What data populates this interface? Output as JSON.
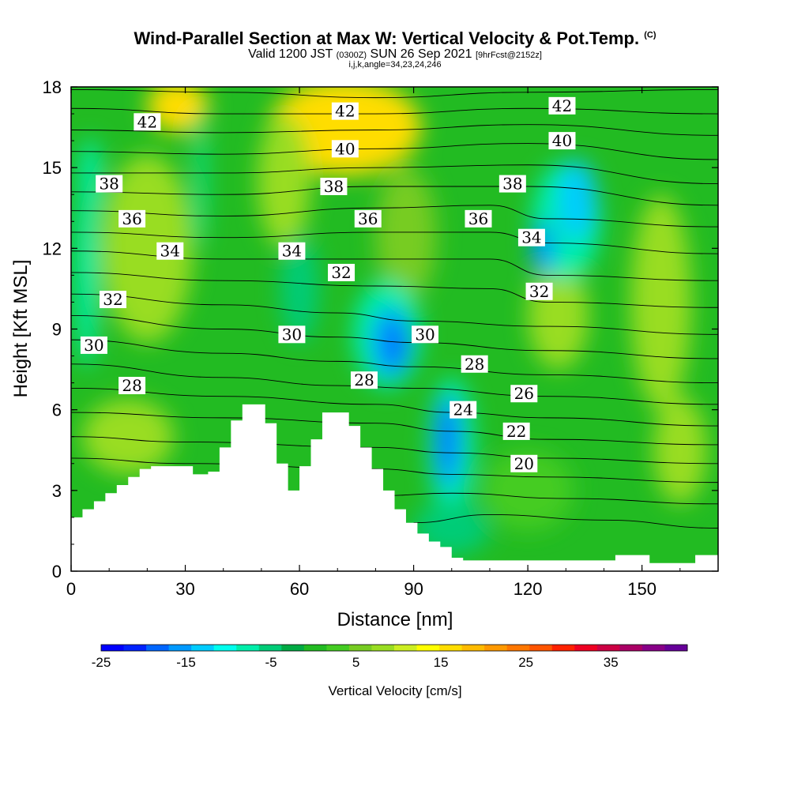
{
  "header": {
    "title": "Wind-Parallel Section at Max W: Vertical Velocity & Pot.Temp.",
    "title_mark": "(C)",
    "valid_prefix": "Valid 1200 JST",
    "valid_utc": "(0300Z)",
    "valid_date": "SUN 26 Sep 2021",
    "forecast_info": "[9hrFcst@2152z]",
    "grid_info": "i,j,k,angle=34,23,24,246"
  },
  "chart_data": {
    "type": "heatmap",
    "xlabel": "Distance [nm]",
    "ylabel": "Height [Kft MSL]",
    "xlim": [
      0,
      170
    ],
    "ylim": [
      0,
      18
    ],
    "xticks": [
      "0",
      "30",
      "60",
      "90",
      "120",
      "150"
    ],
    "yticks": [
      "0",
      "3",
      "6",
      "9",
      "12",
      "15",
      "18"
    ],
    "colorbar": {
      "title": "Vertical Velocity [cm/s]",
      "tick_labels": [
        "-25",
        "-15",
        "-5",
        "5",
        "15",
        "25",
        "35"
      ],
      "range": [
        -25,
        44
      ],
      "colors": [
        "#0000ff",
        "#0022ff",
        "#0066ff",
        "#0099ff",
        "#00ccff",
        "#00ffee",
        "#00eeaa",
        "#00cc77",
        "#00aa44",
        "#22bb22",
        "#44cc22",
        "#77cc22",
        "#99dd22",
        "#ccee22",
        "#ffff00",
        "#ffdd00",
        "#ffbb00",
        "#ff9900",
        "#ff7700",
        "#ff5500",
        "#ff2200",
        "#ee0022",
        "#cc0044",
        "#aa0066",
        "#880088",
        "#660099"
      ]
    },
    "terrain_kft": [
      [
        0,
        2.0
      ],
      [
        3,
        2.3
      ],
      [
        6,
        2.6
      ],
      [
        9,
        2.9
      ],
      [
        12,
        3.2
      ],
      [
        15,
        3.5
      ],
      [
        18,
        3.8
      ],
      [
        21,
        3.9
      ],
      [
        28,
        3.9
      ],
      [
        32,
        3.6
      ],
      [
        36,
        3.7
      ],
      [
        39,
        4.6
      ],
      [
        42,
        5.6
      ],
      [
        45,
        6.2
      ],
      [
        48,
        6.2
      ],
      [
        51,
        5.5
      ],
      [
        54,
        4.0
      ],
      [
        57,
        3.0
      ],
      [
        60,
        3.9
      ],
      [
        63,
        4.9
      ],
      [
        66,
        5.9
      ],
      [
        70,
        5.9
      ],
      [
        73,
        5.4
      ],
      [
        76,
        4.6
      ],
      [
        79,
        3.8
      ],
      [
        82,
        3.0
      ],
      [
        85,
        2.3
      ],
      [
        88,
        1.8
      ],
      [
        91,
        1.4
      ],
      [
        94,
        1.1
      ],
      [
        97,
        0.9
      ],
      [
        100,
        0.5
      ],
      [
        103,
        0.4
      ],
      [
        140,
        0.4
      ],
      [
        143,
        0.6
      ],
      [
        148,
        0.6
      ],
      [
        152,
        0.3
      ],
      [
        164,
        0.6
      ],
      [
        170,
        0.6
      ]
    ],
    "pot_temp_labels": [
      {
        "value": "42",
        "x": 20,
        "y": 16.7
      },
      {
        "value": "42",
        "x": 72,
        "y": 17.1
      },
      {
        "value": "42",
        "x": 129,
        "y": 17.3
      },
      {
        "value": "40",
        "x": 72,
        "y": 15.7
      },
      {
        "value": "40",
        "x": 129,
        "y": 16.0
      },
      {
        "value": "38",
        "x": 10,
        "y": 14.4
      },
      {
        "value": "38",
        "x": 69,
        "y": 14.3
      },
      {
        "value": "38",
        "x": 116,
        "y": 14.4
      },
      {
        "value": "36",
        "x": 16,
        "y": 13.1
      },
      {
        "value": "36",
        "x": 78,
        "y": 13.1
      },
      {
        "value": "36",
        "x": 107,
        "y": 13.1
      },
      {
        "value": "34",
        "x": 26,
        "y": 11.9
      },
      {
        "value": "34",
        "x": 58,
        "y": 11.9
      },
      {
        "value": "34",
        "x": 121,
        "y": 12.4
      },
      {
        "value": "32",
        "x": 11,
        "y": 10.1
      },
      {
        "value": "32",
        "x": 71,
        "y": 11.1
      },
      {
        "value": "32",
        "x": 123,
        "y": 10.4
      },
      {
        "value": "30",
        "x": 6,
        "y": 8.4
      },
      {
        "value": "30",
        "x": 58,
        "y": 8.8
      },
      {
        "value": "30",
        "x": 93,
        "y": 8.8
      },
      {
        "value": "28",
        "x": 16,
        "y": 6.9
      },
      {
        "value": "28",
        "x": 77,
        "y": 7.1
      },
      {
        "value": "28",
        "x": 106,
        "y": 7.7
      },
      {
        "value": "26",
        "x": 119,
        "y": 6.6
      },
      {
        "value": "24",
        "x": 103,
        "y": 6.0
      },
      {
        "value": "22",
        "x": 117,
        "y": 5.2
      },
      {
        "value": "20",
        "x": 119,
        "y": 4.0
      }
    ],
    "pot_temp_lines": [
      [
        [
          0,
          17.9
        ],
        [
          40,
          17.8
        ],
        [
          80,
          17.6
        ],
        [
          120,
          17.8
        ],
        [
          170,
          17.9
        ]
      ],
      [
        [
          0,
          17.2
        ],
        [
          40,
          17.0
        ],
        [
          80,
          17.0
        ],
        [
          120,
          17.2
        ],
        [
          170,
          17.0
        ]
      ],
      [
        [
          0,
          16.4
        ],
        [
          40,
          16.3
        ],
        [
          80,
          16.4
        ],
        [
          120,
          16.6
        ],
        [
          170,
          16.2
        ]
      ],
      [
        [
          0,
          15.6
        ],
        [
          40,
          15.5
        ],
        [
          80,
          15.7
        ],
        [
          120,
          15.9
        ],
        [
          170,
          15.3
        ]
      ],
      [
        [
          0,
          14.8
        ],
        [
          40,
          14.8
        ],
        [
          80,
          15.0
        ],
        [
          120,
          15.1
        ],
        [
          170,
          14.4
        ]
      ],
      [
        [
          0,
          14.1
        ],
        [
          40,
          14.0
        ],
        [
          80,
          14.3
        ],
        [
          120,
          14.3
        ],
        [
          170,
          13.6
        ]
      ],
      [
        [
          0,
          13.4
        ],
        [
          40,
          13.2
        ],
        [
          80,
          13.5
        ],
        [
          110,
          13.6
        ],
        [
          125,
          13.1
        ],
        [
          170,
          12.8
        ]
      ],
      [
        [
          0,
          12.6
        ],
        [
          40,
          12.4
        ],
        [
          80,
          12.6
        ],
        [
          110,
          12.6
        ],
        [
          125,
          12.2
        ],
        [
          170,
          11.8
        ]
      ],
      [
        [
          0,
          11.9
        ],
        [
          40,
          11.6
        ],
        [
          80,
          11.6
        ],
        [
          110,
          11.6
        ],
        [
          125,
          11.0
        ],
        [
          170,
          10.8
        ]
      ],
      [
        [
          0,
          11.1
        ],
        [
          40,
          10.8
        ],
        [
          80,
          10.6
        ],
        [
          110,
          10.5
        ],
        [
          125,
          10.0
        ],
        [
          170,
          9.8
        ]
      ],
      [
        [
          0,
          10.3
        ],
        [
          40,
          9.9
        ],
        [
          70,
          9.6
        ],
        [
          90,
          9.3
        ],
        [
          125,
          9.1
        ],
        [
          170,
          8.8
        ]
      ],
      [
        [
          0,
          9.5
        ],
        [
          40,
          9.0
        ],
        [
          70,
          8.7
        ],
        [
          90,
          8.5
        ],
        [
          125,
          8.2
        ],
        [
          170,
          7.9
        ]
      ],
      [
        [
          0,
          8.6
        ],
        [
          40,
          8.1
        ],
        [
          70,
          7.8
        ],
        [
          90,
          7.6
        ],
        [
          125,
          7.3
        ],
        [
          170,
          7.0
        ]
      ],
      [
        [
          0,
          7.7
        ],
        [
          40,
          7.2
        ],
        [
          70,
          6.9
        ],
        [
          90,
          6.8
        ],
        [
          125,
          6.5
        ],
        [
          170,
          6.2
        ]
      ],
      [
        [
          0,
          6.8
        ],
        [
          40,
          6.5
        ],
        [
          80,
          6.2
        ],
        [
          100,
          5.9
        ],
        [
          125,
          5.7
        ],
        [
          170,
          5.4
        ]
      ],
      [
        [
          0,
          5.9
        ],
        [
          40,
          5.7
        ],
        [
          80,
          5.5
        ],
        [
          100,
          5.2
        ],
        [
          125,
          4.9
        ],
        [
          170,
          4.7
        ]
      ],
      [
        [
          0,
          5.0
        ],
        [
          30,
          4.8
        ],
        [
          80,
          4.6
        ],
        [
          100,
          4.4
        ],
        [
          125,
          4.2
        ],
        [
          170,
          4.0
        ]
      ],
      [
        [
          0,
          4.2
        ],
        [
          30,
          4.0
        ],
        [
          80,
          3.8
        ],
        [
          100,
          3.6
        ],
        [
          125,
          3.5
        ],
        [
          170,
          3.3
        ]
      ],
      [
        [
          80,
          2.8
        ],
        [
          100,
          2.9
        ],
        [
          130,
          2.7
        ],
        [
          170,
          2.5
        ]
      ],
      [
        [
          90,
          1.8
        ],
        [
          110,
          2.1
        ],
        [
          140,
          1.9
        ],
        [
          170,
          1.6
        ]
      ]
    ],
    "w_field_blobs": [
      {
        "x": 72,
        "y": 16.5,
        "rx": 20,
        "ry": 1.8,
        "w": 15
      },
      {
        "x": 72,
        "y": 17.4,
        "rx": 10,
        "ry": 0.7,
        "w": 17
      },
      {
        "x": 28,
        "y": 17.3,
        "rx": 8,
        "ry": 1.0,
        "w": 15
      },
      {
        "x": 20,
        "y": 12.0,
        "rx": 12,
        "ry": 3.5,
        "w": 7
      },
      {
        "x": 56,
        "y": 14.5,
        "rx": 7,
        "ry": 2.5,
        "w": 7
      },
      {
        "x": 88,
        "y": 12.5,
        "rx": 8,
        "ry": 2.5,
        "w": 5
      },
      {
        "x": 155,
        "y": 10.0,
        "rx": 8,
        "ry": 4.0,
        "w": 7
      },
      {
        "x": 128,
        "y": 9.5,
        "rx": 8,
        "ry": 2.0,
        "w": 7
      },
      {
        "x": 15,
        "y": 5.0,
        "rx": 12,
        "ry": 1.4,
        "w": 9
      },
      {
        "x": 160,
        "y": 4.5,
        "rx": 7,
        "ry": 2.0,
        "w": 7
      },
      {
        "x": 120,
        "y": 3.0,
        "rx": 12,
        "ry": 1.5,
        "w": 3
      },
      {
        "x": 4,
        "y": 11.0,
        "rx": 3,
        "ry": 3.5,
        "w": -9
      },
      {
        "x": 5,
        "y": 14.5,
        "rx": 3,
        "ry": 1.6,
        "w": -9
      },
      {
        "x": 34,
        "y": 14.5,
        "rx": 1.3,
        "ry": 2.5,
        "w": -9
      },
      {
        "x": 60,
        "y": 10.5,
        "rx": 5,
        "ry": 2.0,
        "w": -5
      },
      {
        "x": 83,
        "y": 8.8,
        "rx": 9,
        "ry": 2.0,
        "w": -9
      },
      {
        "x": 84,
        "y": 8.5,
        "rx": 5,
        "ry": 1.3,
        "w": -15
      },
      {
        "x": 86,
        "y": 8.4,
        "rx": 2.5,
        "ry": 0.8,
        "w": -19
      },
      {
        "x": 100,
        "y": 4.6,
        "rx": 6,
        "ry": 2.6,
        "w": -9
      },
      {
        "x": 99,
        "y": 4.8,
        "rx": 3.5,
        "ry": 1.8,
        "w": -15
      },
      {
        "x": 99,
        "y": 5.0,
        "rx": 1.8,
        "ry": 1.1,
        "w": -19
      },
      {
        "x": 130,
        "y": 13.0,
        "rx": 9,
        "ry": 2.2,
        "w": -9
      },
      {
        "x": 133,
        "y": 13.8,
        "rx": 5,
        "ry": 1.5,
        "w": -13
      },
      {
        "x": 124,
        "y": 12.0,
        "rx": 3,
        "ry": 1.0,
        "w": -15
      },
      {
        "x": 100,
        "y": 1.6,
        "rx": 10,
        "ry": 1.0,
        "w": -5
      }
    ]
  }
}
